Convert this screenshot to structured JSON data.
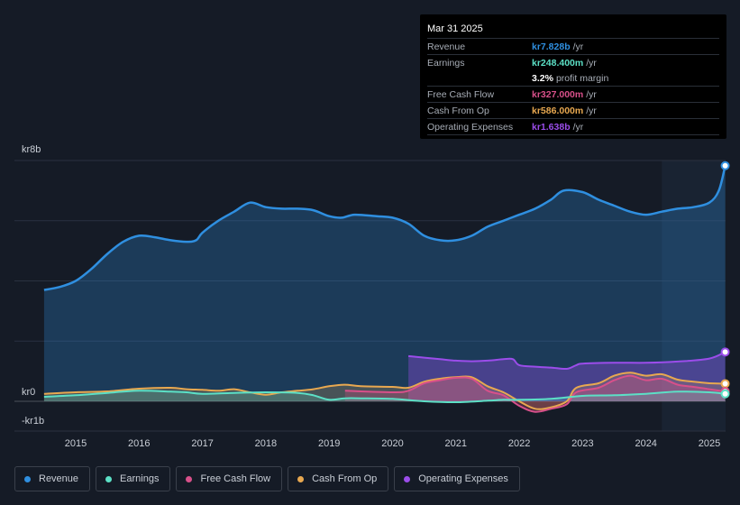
{
  "tooltip": {
    "date": "Mar 31 2025",
    "rows": [
      {
        "label": "Revenue",
        "value": "kr7.828b",
        "unit": "/yr",
        "color": "#2f8fe0"
      },
      {
        "label": "Earnings",
        "value": "kr248.400m",
        "unit": "/yr",
        "color": "#5ce0c6"
      },
      {
        "label": "Free Cash Flow",
        "value": "kr327.000m",
        "unit": "/yr",
        "color": "#d8508a"
      },
      {
        "label": "Cash From Op",
        "value": "kr586.000m",
        "unit": "/yr",
        "color": "#e8a850"
      },
      {
        "label": "Operating Expenses",
        "value": "kr1.638b",
        "unit": "/yr",
        "color": "#9b4dea"
      }
    ],
    "margin_value": "3.2%",
    "margin_label": "profit margin"
  },
  "legend": [
    {
      "label": "Revenue",
      "color": "#2f8fe0"
    },
    {
      "label": "Earnings",
      "color": "#5ce0c6"
    },
    {
      "label": "Free Cash Flow",
      "color": "#d8508a"
    },
    {
      "label": "Cash From Op",
      "color": "#e8a850"
    },
    {
      "label": "Operating Expenses",
      "color": "#9b4dea"
    }
  ],
  "chart_data": {
    "type": "area",
    "currency": "kr",
    "y_unit": "billions",
    "ylim": [
      -1,
      8
    ],
    "y_tick_labels": [
      {
        "value": 8,
        "label": "kr8b"
      },
      {
        "value": 0,
        "label": "kr0"
      },
      {
        "value": -1,
        "label": "-kr1b"
      }
    ],
    "x_tick_labels": [
      {
        "value": 2015,
        "label": "2015"
      },
      {
        "value": 2016,
        "label": "2016"
      },
      {
        "value": 2017,
        "label": "2017"
      },
      {
        "value": 2018,
        "label": "2018"
      },
      {
        "value": 2019,
        "label": "2019"
      },
      {
        "value": 2020,
        "label": "2020"
      },
      {
        "value": 2021,
        "label": "2021"
      },
      {
        "value": 2022,
        "label": "2022"
      },
      {
        "value": 2023,
        "label": "2023"
      },
      {
        "value": 2024,
        "label": "2024"
      },
      {
        "value": 2025,
        "label": "2025"
      }
    ],
    "xlim": [
      2013.75,
      2025.4
    ],
    "forecast_start": 2024.25,
    "series": [
      {
        "name": "Revenue",
        "color": "#2f8fe0",
        "points": [
          [
            2014.5,
            3.7
          ],
          [
            2014.75,
            3.8
          ],
          [
            2015.0,
            4.0
          ],
          [
            2015.25,
            4.4
          ],
          [
            2015.5,
            4.9
          ],
          [
            2015.75,
            5.3
          ],
          [
            2016.0,
            5.5
          ],
          [
            2016.25,
            5.45
          ],
          [
            2016.5,
            5.35
          ],
          [
            2016.75,
            5.3
          ],
          [
            2016.9,
            5.35
          ],
          [
            2017.0,
            5.6
          ],
          [
            2017.25,
            6.0
          ],
          [
            2017.5,
            6.3
          ],
          [
            2017.75,
            6.6
          ],
          [
            2018.0,
            6.45
          ],
          [
            2018.25,
            6.4
          ],
          [
            2018.5,
            6.4
          ],
          [
            2018.75,
            6.35
          ],
          [
            2019.0,
            6.15
          ],
          [
            2019.2,
            6.1
          ],
          [
            2019.4,
            6.2
          ],
          [
            2019.75,
            6.15
          ],
          [
            2020.0,
            6.1
          ],
          [
            2020.25,
            5.9
          ],
          [
            2020.5,
            5.5
          ],
          [
            2020.75,
            5.35
          ],
          [
            2021.0,
            5.35
          ],
          [
            2021.25,
            5.5
          ],
          [
            2021.5,
            5.8
          ],
          [
            2021.75,
            6.0
          ],
          [
            2022.0,
            6.2
          ],
          [
            2022.25,
            6.4
          ],
          [
            2022.5,
            6.7
          ],
          [
            2022.7,
            7.0
          ],
          [
            2023.0,
            6.95
          ],
          [
            2023.25,
            6.7
          ],
          [
            2023.5,
            6.5
          ],
          [
            2023.75,
            6.3
          ],
          [
            2024.0,
            6.2
          ],
          [
            2024.25,
            6.3
          ],
          [
            2024.5,
            6.4
          ],
          [
            2024.75,
            6.45
          ],
          [
            2025.0,
            6.6
          ],
          [
            2025.15,
            7.0
          ],
          [
            2025.25,
            7.828
          ]
        ]
      },
      {
        "name": "Operating Expenses",
        "color": "#9b4dea",
        "points": [
          [
            2020.25,
            1.5
          ],
          [
            2020.5,
            1.45
          ],
          [
            2020.75,
            1.4
          ],
          [
            2021.0,
            1.35
          ],
          [
            2021.25,
            1.33
          ],
          [
            2021.5,
            1.35
          ],
          [
            2021.75,
            1.4
          ],
          [
            2021.9,
            1.4
          ],
          [
            2022.0,
            1.2
          ],
          [
            2022.25,
            1.15
          ],
          [
            2022.5,
            1.12
          ],
          [
            2022.75,
            1.08
          ],
          [
            2022.9,
            1.2
          ],
          [
            2023.0,
            1.25
          ],
          [
            2023.5,
            1.28
          ],
          [
            2024.0,
            1.28
          ],
          [
            2024.5,
            1.32
          ],
          [
            2025.0,
            1.42
          ],
          [
            2025.25,
            1.638
          ]
        ]
      },
      {
        "name": "Cash From Op",
        "color": "#e8a850",
        "points": [
          [
            2014.5,
            0.25
          ],
          [
            2015.0,
            0.3
          ],
          [
            2015.5,
            0.33
          ],
          [
            2016.0,
            0.42
          ],
          [
            2016.5,
            0.45
          ],
          [
            2016.75,
            0.4
          ],
          [
            2017.0,
            0.38
          ],
          [
            2017.25,
            0.35
          ],
          [
            2017.5,
            0.4
          ],
          [
            2017.75,
            0.3
          ],
          [
            2018.0,
            0.22
          ],
          [
            2018.25,
            0.3
          ],
          [
            2018.5,
            0.35
          ],
          [
            2018.75,
            0.4
          ],
          [
            2019.0,
            0.5
          ],
          [
            2019.25,
            0.55
          ],
          [
            2019.5,
            0.5
          ],
          [
            2020.0,
            0.48
          ],
          [
            2020.25,
            0.45
          ],
          [
            2020.5,
            0.65
          ],
          [
            2020.75,
            0.75
          ],
          [
            2021.0,
            0.8
          ],
          [
            2021.25,
            0.8
          ],
          [
            2021.5,
            0.5
          ],
          [
            2021.75,
            0.3
          ],
          [
            2022.0,
            0.0
          ],
          [
            2022.25,
            -0.25
          ],
          [
            2022.5,
            -0.2
          ],
          [
            2022.75,
            0.0
          ],
          [
            2022.9,
            0.45
          ],
          [
            2023.25,
            0.6
          ],
          [
            2023.5,
            0.85
          ],
          [
            2023.75,
            0.95
          ],
          [
            2024.0,
            0.85
          ],
          [
            2024.25,
            0.9
          ],
          [
            2024.5,
            0.72
          ],
          [
            2024.75,
            0.65
          ],
          [
            2025.0,
            0.6
          ],
          [
            2025.25,
            0.586
          ]
        ]
      },
      {
        "name": "Free Cash Flow",
        "color": "#d8508a",
        "points": [
          [
            2019.25,
            0.35
          ],
          [
            2020.0,
            0.3
          ],
          [
            2020.25,
            0.35
          ],
          [
            2020.5,
            0.6
          ],
          [
            2020.75,
            0.7
          ],
          [
            2021.0,
            0.78
          ],
          [
            2021.25,
            0.75
          ],
          [
            2021.5,
            0.35
          ],
          [
            2021.75,
            0.2
          ],
          [
            2022.0,
            -0.15
          ],
          [
            2022.25,
            -0.35
          ],
          [
            2022.5,
            -0.25
          ],
          [
            2022.75,
            -0.1
          ],
          [
            2022.9,
            0.3
          ],
          [
            2023.25,
            0.45
          ],
          [
            2023.5,
            0.7
          ],
          [
            2023.75,
            0.85
          ],
          [
            2024.0,
            0.7
          ],
          [
            2024.25,
            0.75
          ],
          [
            2024.5,
            0.55
          ],
          [
            2024.75,
            0.48
          ],
          [
            2025.0,
            0.4
          ],
          [
            2025.25,
            0.327
          ]
        ]
      },
      {
        "name": "Earnings",
        "color": "#5ce0c6",
        "points": [
          [
            2014.5,
            0.15
          ],
          [
            2015.0,
            0.2
          ],
          [
            2015.5,
            0.28
          ],
          [
            2016.0,
            0.35
          ],
          [
            2016.5,
            0.32
          ],
          [
            2016.75,
            0.3
          ],
          [
            2017.0,
            0.25
          ],
          [
            2017.5,
            0.28
          ],
          [
            2018.0,
            0.3
          ],
          [
            2018.5,
            0.28
          ],
          [
            2018.75,
            0.2
          ],
          [
            2019.0,
            0.05
          ],
          [
            2019.25,
            0.1
          ],
          [
            2019.5,
            0.1
          ],
          [
            2020.0,
            0.08
          ],
          [
            2020.5,
            0.0
          ],
          [
            2021.0,
            -0.03
          ],
          [
            2021.5,
            0.02
          ],
          [
            2021.75,
            0.05
          ],
          [
            2022.0,
            0.05
          ],
          [
            2022.5,
            0.08
          ],
          [
            2023.0,
            0.18
          ],
          [
            2023.5,
            0.2
          ],
          [
            2024.0,
            0.25
          ],
          [
            2024.5,
            0.32
          ],
          [
            2025.0,
            0.3
          ],
          [
            2025.25,
            0.2484
          ]
        ]
      }
    ]
  }
}
